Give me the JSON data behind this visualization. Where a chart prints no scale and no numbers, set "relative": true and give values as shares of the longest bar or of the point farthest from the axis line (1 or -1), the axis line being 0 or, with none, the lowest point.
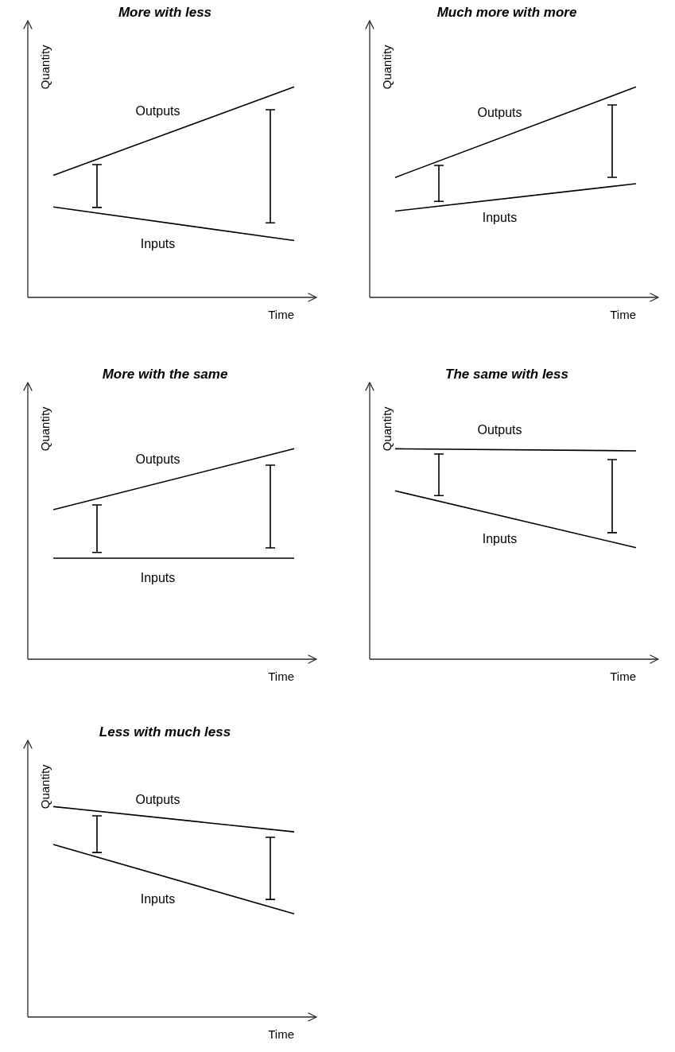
{
  "chart_data": [
    {
      "type": "line",
      "title": "More with less",
      "xlabel": "Time",
      "ylabel": "Quantity",
      "relative": true,
      "tick_labels": false,
      "categories": [
        null,
        null
      ],
      "series": [
        {
          "name": "Outputs",
          "color": "#000000",
          "values": [
            0.58,
            1.0
          ]
        },
        {
          "name": "Inputs",
          "color": "#000000",
          "values": [
            0.43,
            0.27
          ]
        }
      ]
    },
    {
      "type": "line",
      "title": "Much more with more",
      "xlabel": "Time",
      "ylabel": "Quantity",
      "relative": true,
      "tick_labels": false,
      "categories": [
        null,
        null
      ],
      "series": [
        {
          "name": "Outputs",
          "color": "#000000",
          "values": [
            0.57,
            1.0
          ]
        },
        {
          "name": "Inputs",
          "color": "#000000",
          "values": [
            0.41,
            0.54
          ]
        }
      ]
    },
    {
      "type": "line",
      "title": "More with the same",
      "xlabel": "Time",
      "ylabel": "Quantity",
      "relative": true,
      "tick_labels": false,
      "categories": [
        null,
        null
      ],
      "series": [
        {
          "name": "Outputs",
          "color": "#000000",
          "values": [
            0.71,
            1.0
          ]
        },
        {
          "name": "Inputs",
          "color": "#000000",
          "values": [
            0.48,
            0.48
          ]
        }
      ]
    },
    {
      "type": "line",
      "title": "The same with less",
      "xlabel": "Time",
      "ylabel": "Quantity",
      "relative": true,
      "tick_labels": false,
      "categories": [
        null,
        null
      ],
      "series": [
        {
          "name": "Outputs",
          "color": "#000000",
          "values": [
            1.0,
            0.99
          ]
        },
        {
          "name": "Inputs",
          "color": "#000000",
          "values": [
            0.8,
            0.53
          ]
        }
      ]
    },
    {
      "type": "line",
      "title": "Less with much less",
      "xlabel": "Time",
      "ylabel": "Quantity",
      "relative": true,
      "tick_labels": false,
      "categories": [
        null,
        null
      ],
      "series": [
        {
          "name": "Outputs",
          "color": "#000000",
          "values": [
            1.0,
            0.88
          ]
        },
        {
          "name": "Inputs",
          "color": "#000000",
          "values": [
            0.82,
            0.49
          ]
        }
      ]
    }
  ]
}
